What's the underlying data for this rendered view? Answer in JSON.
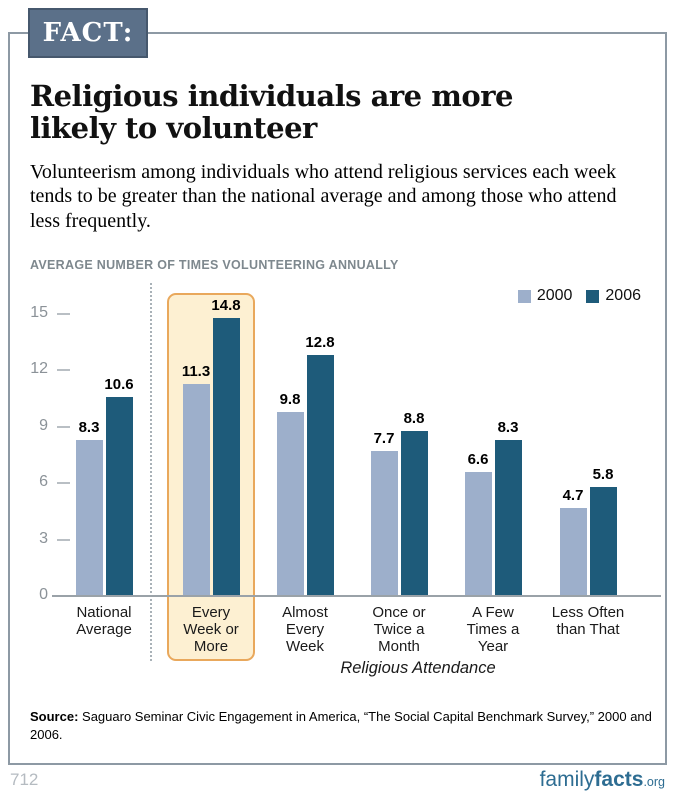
{
  "fact_label": "FACT:",
  "title": "Religious individuals are more likely to volunteer",
  "subtitle": "Volunteerism among individuals who attend religious services each week tends to be greater than the national average and among those who attend less frequently.",
  "chart_data": {
    "type": "bar",
    "title": "AVERAGE NUMBER OF TIMES VOLUNTEERING ANNUALLY",
    "categories": [
      "National Average",
      "Every Week or More",
      "Almost Every Week",
      "Once or Twice a Month",
      "A Few Times a Year",
      "Less Often than That"
    ],
    "category_label_lines": [
      [
        "National",
        "Average"
      ],
      [
        "Every",
        "Week or",
        "More"
      ],
      [
        "Almost",
        "Every",
        "Week"
      ],
      [
        "Once or",
        "Twice a",
        "Month"
      ],
      [
        "A Few",
        "Times a",
        "Year"
      ],
      [
        "Less Often",
        "than That"
      ]
    ],
    "series": [
      {
        "name": "2000",
        "color": "#9dafcb",
        "values": [
          8.3,
          11.3,
          9.8,
          7.7,
          6.6,
          4.7
        ]
      },
      {
        "name": "2006",
        "color": "#1e5b7a",
        "values": [
          10.6,
          14.8,
          12.8,
          8.8,
          8.3,
          5.8
        ]
      }
    ],
    "xlabel": "Religious Attendance",
    "ylabel": "",
    "ylim": [
      0,
      16
    ],
    "yticks": [
      0,
      3,
      6,
      9,
      12,
      15
    ],
    "grid": false,
    "legend_position": "top-right",
    "highlighted_category": "Every Week or More",
    "highlight_fill": "#fdf0d2",
    "highlight_border": "#e9a85c",
    "separator_after_category": "National Average"
  },
  "source": {
    "label": "Source:",
    "text": " Saguaro Seminar Civic Engagement in America, “The Social Capital Benchmark Survey,” 2000 and 2006."
  },
  "footer": {
    "page_number": "712",
    "logo": {
      "part1": "family",
      "part2": "facts",
      "part3": ".org"
    }
  },
  "colors": {
    "fact_badge_bg": "#5b7089",
    "fact_badge_border": "#46586d",
    "content_border": "#8d99a4",
    "bar_2000": "#9dafcb",
    "bar_2006": "#1e5b7a",
    "highlight_fill": "#fdf0d2",
    "highlight_border": "#e9a85c",
    "logo_blue": "#2e6d92"
  }
}
